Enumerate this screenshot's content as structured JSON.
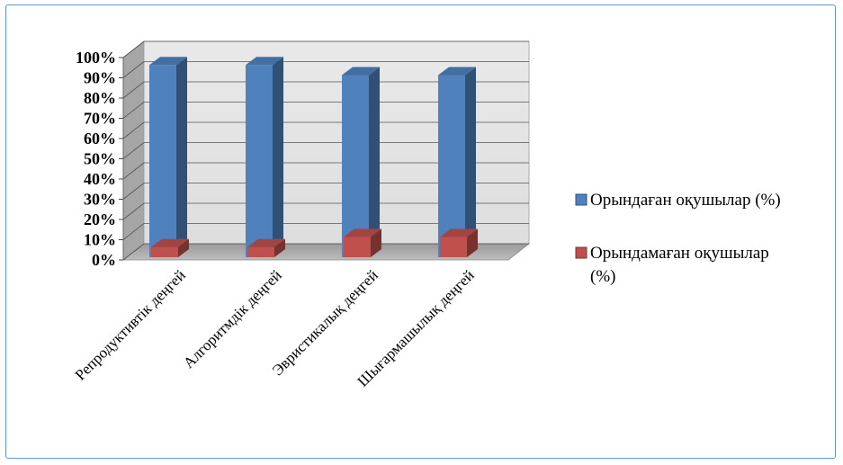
{
  "chart_data": {
    "type": "bar",
    "style": "3d-clustered-column",
    "categories": [
      "Репродуктивтік деңгей",
      "Алгоритмдік деңгей",
      "Эвристикалық деңгей",
      "Шығармашылық деңгей"
    ],
    "series": [
      {
        "name": "Орындаған оқушылар (%)",
        "values": [
          95,
          95,
          90,
          90
        ],
        "color": "#4f81bd"
      },
      {
        "name": "Орындамаған оқушылар (%)",
        "values": [
          5,
          5,
          10,
          10
        ],
        "color": "#c0504d"
      }
    ],
    "ylim": [
      0,
      100
    ],
    "yticks": [
      "0%",
      "10%",
      "20%",
      "30%",
      "40%",
      "50%",
      "60%",
      "70%",
      "80%",
      "90%",
      "100%"
    ],
    "grid": true,
    "legend_position": "right"
  }
}
